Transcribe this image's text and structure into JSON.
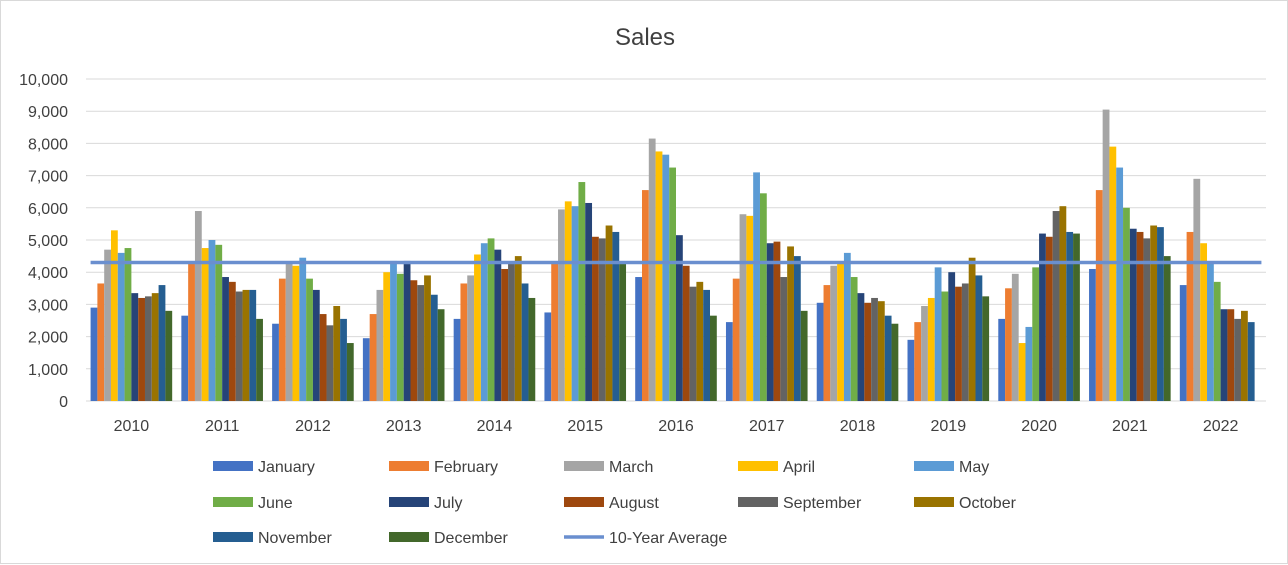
{
  "chart_data": {
    "type": "bar",
    "title": "Sales",
    "xlabel": "",
    "ylabel": "",
    "ylim": [
      0,
      10000
    ],
    "y_ticks": [
      "0",
      "1,000",
      "2,000",
      "3,000",
      "4,000",
      "5,000",
      "6,000",
      "7,000",
      "8,000",
      "9,000",
      "10,000"
    ],
    "categories": [
      "2010",
      "2011",
      "2012",
      "2013",
      "2014",
      "2015",
      "2016",
      "2017",
      "2018",
      "2019",
      "2020",
      "2021",
      "2022"
    ],
    "grid": true,
    "legend_position": "bottom",
    "series": [
      {
        "name": "January",
        "color": "#4472C4",
        "values": [
          2900,
          2650,
          2400,
          1950,
          2550,
          2750,
          3850,
          2450,
          3050,
          1900,
          2550,
          4100,
          3600
        ]
      },
      {
        "name": "February",
        "color": "#ED7D31",
        "values": [
          3650,
          4300,
          3800,
          2700,
          3650,
          4300,
          6550,
          3800,
          3600,
          2450,
          3500,
          6550,
          5250
        ]
      },
      {
        "name": "March",
        "color": "#A5A5A5",
        "values": [
          4700,
          5900,
          4300,
          3450,
          3900,
          5950,
          8150,
          5800,
          4200,
          2950,
          3950,
          9050,
          6900
        ]
      },
      {
        "name": "April",
        "color": "#FFC000",
        "values": [
          5300,
          4750,
          4200,
          4000,
          4550,
          6200,
          7750,
          5750,
          4300,
          3200,
          1800,
          7900,
          4900
        ]
      },
      {
        "name": "May",
        "color": "#5B9BD5",
        "values": [
          4600,
          5000,
          4450,
          4350,
          4900,
          6050,
          7650,
          7100,
          4600,
          4150,
          2300,
          7250,
          4300
        ]
      },
      {
        "name": "June",
        "color": "#70AD47",
        "values": [
          4750,
          4850,
          3800,
          3950,
          5050,
          6800,
          7250,
          6450,
          3850,
          3400,
          4150,
          6000,
          3700
        ]
      },
      {
        "name": "July",
        "color": "#264478",
        "values": [
          3350,
          3850,
          3450,
          4350,
          4700,
          6150,
          5150,
          4900,
          3350,
          4000,
          5200,
          5350,
          2850
        ]
      },
      {
        "name": "August",
        "color": "#9E480E",
        "values": [
          3200,
          3700,
          2700,
          3750,
          4100,
          5100,
          4200,
          4950,
          3050,
          3550,
          5100,
          5250,
          2850
        ]
      },
      {
        "name": "September",
        "color": "#636363",
        "values": [
          3250,
          3400,
          2350,
          3600,
          4300,
          5050,
          3550,
          3850,
          3200,
          3650,
          5900,
          5050,
          2550
        ]
      },
      {
        "name": "October",
        "color": "#997300",
        "values": [
          3350,
          3450,
          2950,
          3900,
          4500,
          5450,
          3700,
          4800,
          3100,
          4450,
          6050,
          5450,
          2800
        ]
      },
      {
        "name": "November",
        "color": "#255E91",
        "values": [
          3600,
          3450,
          2550,
          3300,
          3650,
          5250,
          3450,
          4500,
          2650,
          3900,
          5250,
          5400,
          2450
        ]
      },
      {
        "name": "December",
        "color": "#43682B",
        "values": [
          2800,
          2550,
          1800,
          2850,
          3200,
          4300,
          2650,
          2800,
          2400,
          3250,
          5200,
          4500,
          0
        ]
      }
    ],
    "average_line": {
      "name": "10-Year Average",
      "color": "#6A8FCF",
      "value": 4300
    }
  }
}
